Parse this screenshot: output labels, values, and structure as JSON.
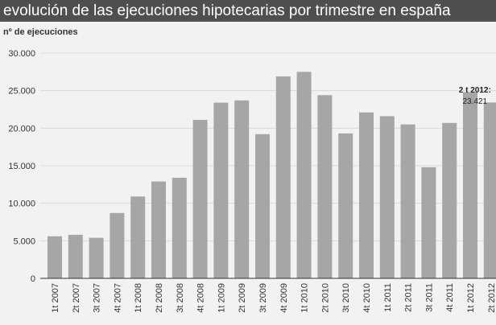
{
  "title": "evolución de las ejecuciones hipotecarias por trimestre en españa",
  "chart_data": {
    "type": "bar",
    "title": "evolución de las ejecuciones hipotecarias por trimestre en españa",
    "ylabel": "nº de ejecuciones",
    "xlabel": "",
    "ylim": [
      0,
      30000
    ],
    "yticks": [
      0,
      5000,
      10000,
      15000,
      20000,
      25000,
      30000
    ],
    "ytick_labels": [
      "0",
      "5.000",
      "10.000",
      "15.000",
      "20.000",
      "25.000",
      "30.000"
    ],
    "grid": "horizontal",
    "bar_color": "#a6a6a6",
    "categories": [
      "1t 2007",
      "2t 2007",
      "3t 2007",
      "4t 2007",
      "1t 2008",
      "2t 2008",
      "3t 2008",
      "4t 2008",
      "1t 2009",
      "2t 2009",
      "3t 2009",
      "4t 2009",
      "1t 2010",
      "2t 2010",
      "3t 2010",
      "4t 2010",
      "1t 2011",
      "2t 2011",
      "3t 2011",
      "4t 2011",
      "1t 2012",
      "2t 2012"
    ],
    "values": [
      5600,
      5800,
      5400,
      8700,
      10900,
      12900,
      13400,
      21100,
      23400,
      23700,
      19200,
      26900,
      27500,
      24400,
      19300,
      22100,
      21600,
      20500,
      14800,
      20700,
      24800,
      23421
    ],
    "annotation": {
      "label": "2 t 2012:",
      "value_text": "23.421",
      "category": "2t 2012"
    }
  }
}
